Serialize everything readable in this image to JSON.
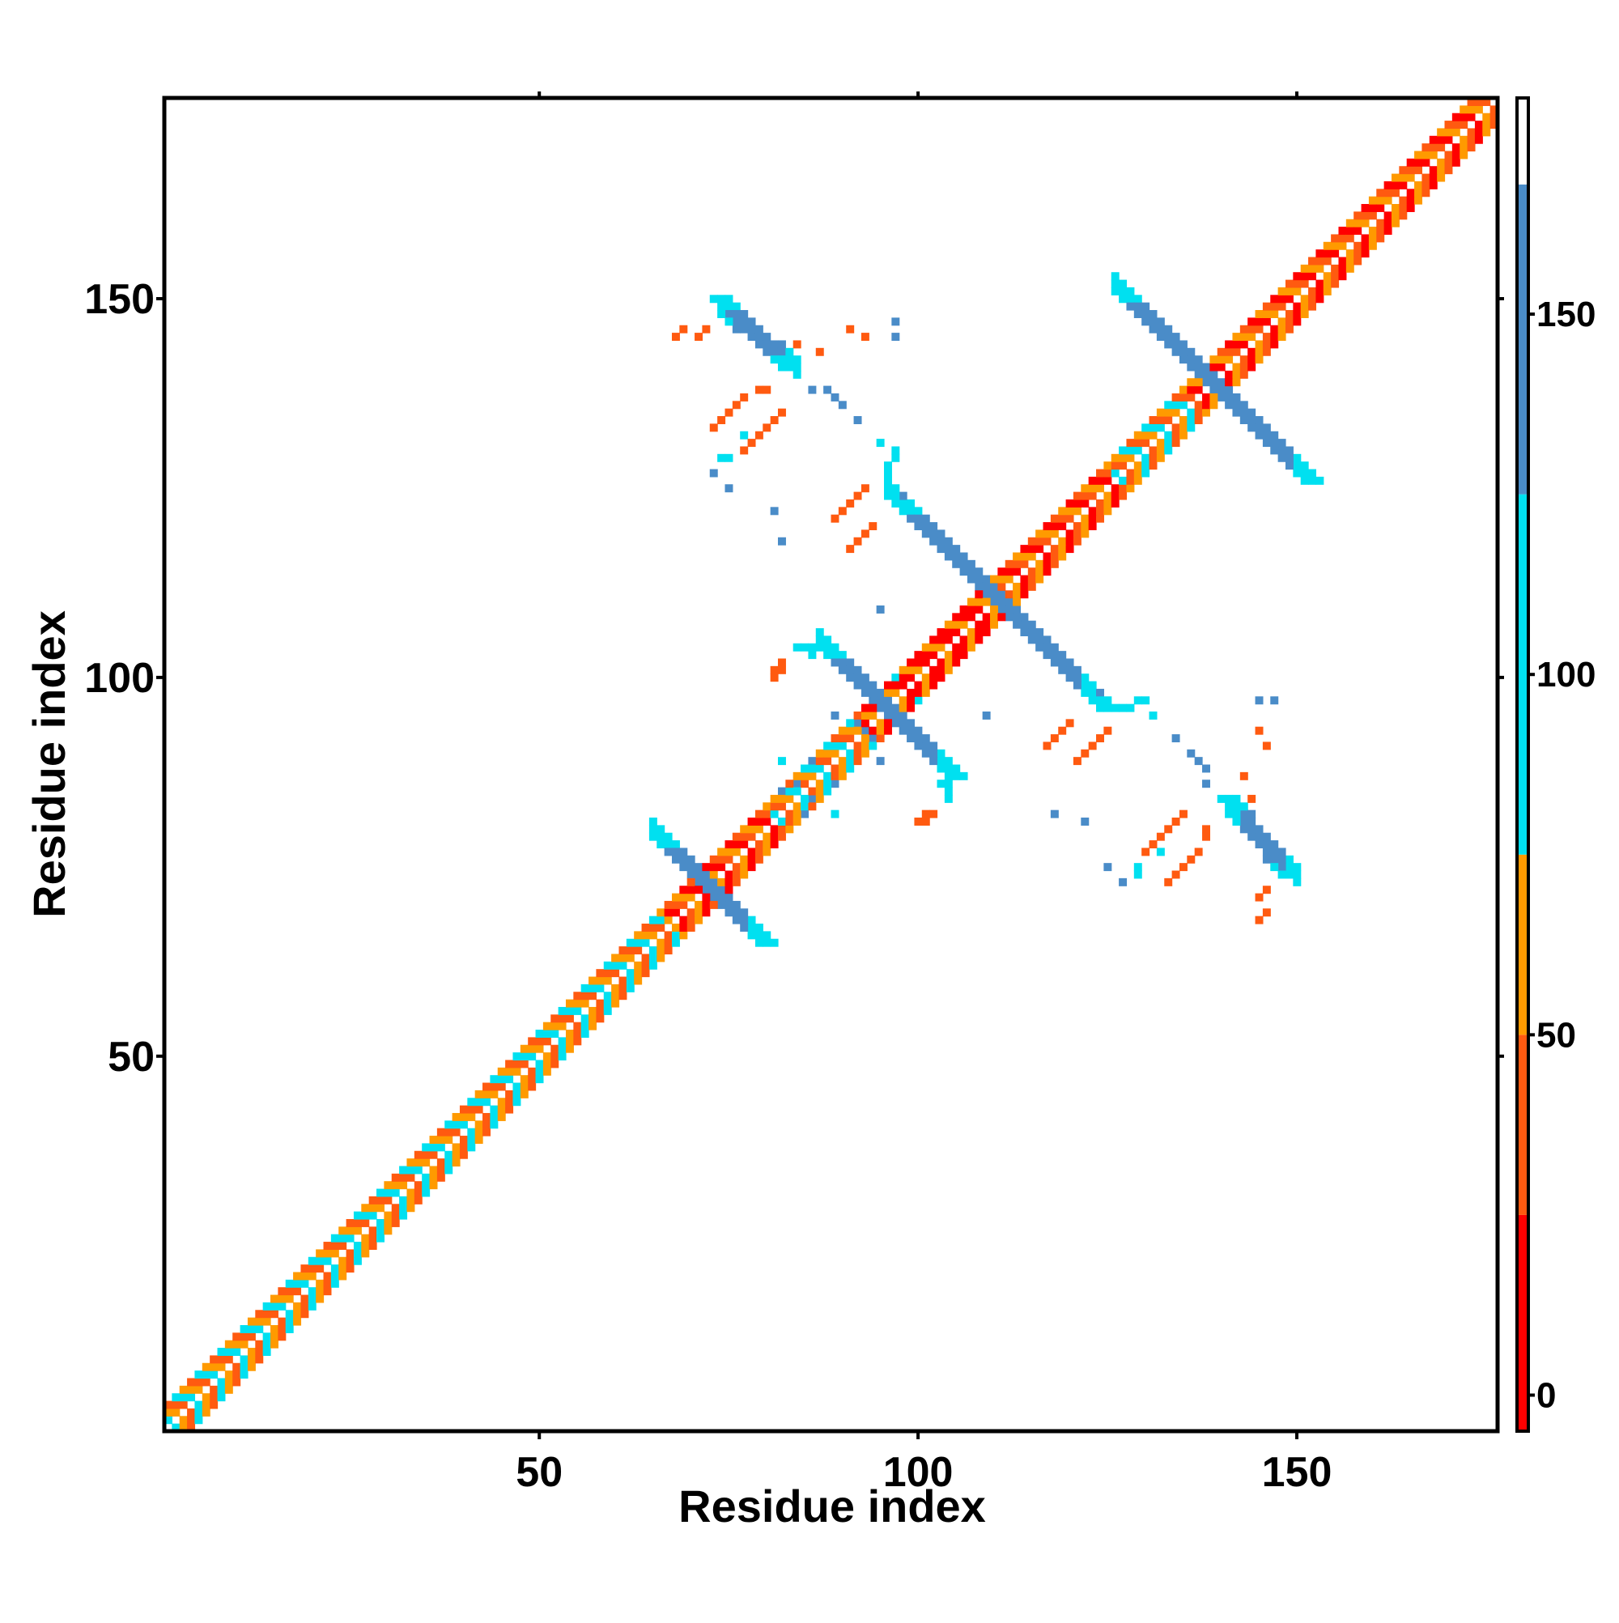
{
  "chart_data": {
    "type": "heatmap",
    "title": "",
    "xlabel": "Residue index",
    "ylabel": "Residue index",
    "xlim": [
      1,
      176
    ],
    "ylim": [
      1,
      176
    ],
    "x_ticks": [
      50,
      100,
      150
    ],
    "y_ticks": [
      50,
      100,
      150
    ],
    "colorbar": {
      "range": [
        -5,
        180
      ],
      "ticks": [
        0,
        50,
        100,
        150
      ],
      "bands": [
        {
          "from": -5,
          "to": 25,
          "color": "#ff0000"
        },
        {
          "from": 25,
          "to": 50,
          "color": "#ff5a10"
        },
        {
          "from": 50,
          "to": 75,
          "color": "#ff9a00"
        },
        {
          "from": 75,
          "to": 125,
          "color": "#00e0f0"
        },
        {
          "from": 125,
          "to": 168,
          "color": "#4a8cc8"
        },
        {
          "from": 168,
          "to": 180,
          "color": "#ffffff"
        }
      ]
    },
    "colors": {
      "red": "#ff0000",
      "red_orange": "#ff5a10",
      "orange": "#ff9a00",
      "cyan": "#00e0f0",
      "steel_blue": "#4a8cc8"
    },
    "series": [
      {
        "kind": "diagonal_band",
        "from": 1,
        "to": 176,
        "segments": [
          {
            "from": 1,
            "to": 66,
            "palette": [
              "orange",
              "red_orange",
              "cyan"
            ]
          },
          {
            "from": 66,
            "to": 80,
            "palette": [
              "red",
              "red_orange",
              "orange"
            ]
          },
          {
            "from": 80,
            "to": 92,
            "palette": [
              "orange",
              "cyan",
              "red_orange"
            ]
          },
          {
            "from": 92,
            "to": 110,
            "palette": [
              "red",
              "red",
              "orange"
            ]
          },
          {
            "from": 110,
            "to": 125,
            "palette": [
              "red",
              "red_orange",
              "orange"
            ]
          },
          {
            "from": 125,
            "to": 135,
            "palette": [
              "orange",
              "cyan",
              "red_orange"
            ]
          },
          {
            "from": 135,
            "to": 176,
            "palette": [
              "red",
              "orange",
              "red_orange"
            ]
          }
        ]
      },
      {
        "kind": "antidiagonal",
        "from": [
          65,
          79
        ],
        "to": [
          79,
          65
        ],
        "width": 3,
        "color": "steel_blue",
        "end_color": "cyan"
      },
      {
        "kind": "antidiagonal",
        "from": [
          87,
          104
        ],
        "to": [
          104,
          87
        ],
        "width": 3,
        "color": "steel_blue",
        "end_color": "cyan"
      },
      {
        "kind": "antidiagonal",
        "from": [
          97,
          123
        ],
        "to": [
          124,
          96
        ],
        "width": 3,
        "color": "steel_blue",
        "end_color": "cyan"
      },
      {
        "kind": "antidiagonal",
        "from": [
          126,
          151
        ],
        "to": [
          151,
          126
        ],
        "width": 3,
        "color": "steel_blue",
        "end_color": "cyan"
      },
      {
        "kind": "antidiagonal",
        "from": [
          73,
          150
        ],
        "to": [
          82,
          141
        ],
        "width": 3,
        "color": "steel_blue",
        "end_color": "cyan"
      },
      {
        "kind": "antidiagonal",
        "from": [
          140,
          84
        ],
        "to": [
          148,
          74
        ],
        "width": 3,
        "color": "steel_blue",
        "end_color": "cyan"
      },
      {
        "kind": "points",
        "color": "steel_blue",
        "cells": [
          [
            97,
            147
          ],
          [
            86,
            138
          ],
          [
            89,
            137
          ],
          [
            90,
            136
          ],
          [
            92,
            134
          ],
          [
            73,
            127
          ],
          [
            81,
            122
          ],
          [
            145,
            97
          ],
          [
            89,
            95
          ],
          [
            92,
            94
          ],
          [
            93,
            93
          ],
          [
            138,
            88
          ],
          [
            84,
            86
          ],
          [
            89,
            86
          ],
          [
            85,
            82
          ],
          [
            118,
            82
          ],
          [
            125,
            75
          ],
          [
            109,
            95
          ]
        ]
      },
      {
        "kind": "points",
        "color": "cyan",
        "cells": [
          [
            95,
            131
          ],
          [
            97,
            130
          ],
          [
            97,
            129
          ],
          [
            74,
            129
          ],
          [
            82,
            89
          ],
          [
            100,
            97
          ],
          [
            126,
            96
          ],
          [
            127,
            96
          ],
          [
            128,
            96
          ],
          [
            129,
            75
          ],
          [
            132,
            77
          ],
          [
            85,
            104
          ],
          [
            86,
            104
          ],
          [
            103,
            86
          ],
          [
            104,
            85
          ],
          [
            104,
            84
          ]
        ]
      },
      {
        "kind": "points",
        "color": "red_orange",
        "cells": [
          [
            68,
            145
          ],
          [
            69,
            146
          ],
          [
            91,
            146
          ],
          [
            84,
            144
          ],
          [
            79,
            138
          ],
          [
            80,
            138
          ],
          [
            77,
            137
          ],
          [
            76,
            136
          ],
          [
            75,
            135
          ],
          [
            74,
            134
          ],
          [
            73,
            133
          ],
          [
            93,
            125
          ],
          [
            92,
            124
          ],
          [
            91,
            123
          ],
          [
            90,
            122
          ],
          [
            89,
            121
          ],
          [
            82,
            101
          ],
          [
            81,
            100
          ],
          [
            102,
            82
          ],
          [
            101,
            81
          ],
          [
            120,
            94
          ],
          [
            119,
            93
          ],
          [
            118,
            92
          ],
          [
            117,
            91
          ],
          [
            135,
            82
          ],
          [
            134,
            81
          ],
          [
            133,
            80
          ],
          [
            132,
            79
          ],
          [
            131,
            78
          ],
          [
            130,
            77
          ],
          [
            145,
            93
          ],
          [
            143,
            87
          ],
          [
            146,
            72
          ],
          [
            145,
            71
          ]
        ]
      }
    ]
  }
}
